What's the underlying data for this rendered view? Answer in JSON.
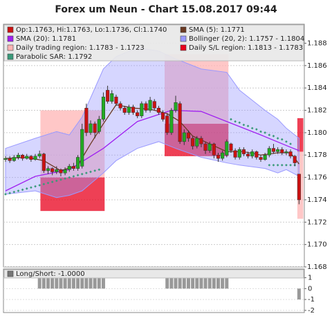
{
  "chart_data": {
    "type": "candlestick",
    "title": "Forex um Neun - Chart 15.08.2017 09:44",
    "ylim": [
      1.168,
      1.1897
    ],
    "yticks": [
      1.168,
      {
        "value": 1.17,
        "label": "1.170"
      },
      1.172,
      1.174,
      1.176,
      1.178,
      {
        "value": 1.18,
        "label": "1.180"
      },
      1.182,
      1.184,
      1.186,
      1.188
    ],
    "grid": true,
    "series": [
      {
        "type": "candlestick",
        "name": "Op:1.1763, Hi:1.1763, Lo:1.1736, Cl:1.1740",
        "color": "#cc1111",
        "up_color": "#22aa22",
        "open": [
          1.1776,
          1.1777,
          1.1775,
          1.1778,
          1.178,
          1.1777,
          1.1779,
          1.1776,
          1.1779,
          1.1781,
          1.1766,
          1.1768,
          1.1765,
          1.1767,
          1.1764,
          1.1767,
          1.177,
          1.1768,
          1.177,
          1.1822,
          1.18,
          1.1808,
          1.1801,
          1.1812,
          1.1838,
          1.1828,
          1.1832,
          1.1826,
          1.1822,
          1.1818,
          1.1823,
          1.1818,
          1.1815,
          1.1826,
          1.182,
          1.1828,
          1.1822,
          1.1818,
          1.1815,
          1.18,
          1.182,
          1.1826,
          1.1792,
          1.18,
          1.1795,
          1.1788,
          1.1795,
          1.179,
          1.1784,
          1.179,
          1.178,
          1.1777,
          1.178,
          1.179,
          1.1784,
          1.1778,
          1.1785,
          1.1781,
          1.1779,
          1.1783,
          1.1778,
          1.1776,
          1.178,
          1.1786,
          1.1783,
          1.1785,
          1.1782,
          1.1783,
          1.1779,
          1.1763
        ],
        "high": [
          1.1779,
          1.1779,
          1.178,
          1.1782,
          1.1781,
          1.1781,
          1.178,
          1.1781,
          1.1784,
          1.1782,
          1.177,
          1.1769,
          1.177,
          1.1768,
          1.1769,
          1.1772,
          1.1773,
          1.178,
          1.1808,
          1.1826,
          1.1811,
          1.181,
          1.1815,
          1.1836,
          1.1842,
          1.1838,
          1.1834,
          1.1828,
          1.1824,
          1.1825,
          1.1825,
          1.182,
          1.1828,
          1.1828,
          1.1832,
          1.183,
          1.1824,
          1.182,
          1.1817,
          1.1822,
          1.1833,
          1.1828,
          1.1803,
          1.1802,
          1.1797,
          1.1797,
          1.1797,
          1.1792,
          1.1792,
          1.1791,
          1.1782,
          1.1784,
          1.1794,
          1.1791,
          1.1786,
          1.1787,
          1.1787,
          1.1783,
          1.1785,
          1.1784,
          1.178,
          1.1782,
          1.1788,
          1.179,
          1.1787,
          1.1787,
          1.1785,
          1.1785,
          1.178,
          1.1763
        ],
        "low": [
          1.1774,
          1.1773,
          1.1774,
          1.1776,
          1.1775,
          1.1776,
          1.1774,
          1.1775,
          1.1777,
          1.1764,
          1.1763,
          1.1762,
          1.1763,
          1.1761,
          1.1762,
          1.1765,
          1.1766,
          1.1766,
          1.1768,
          1.1797,
          1.1798,
          1.1795,
          1.1799,
          1.181,
          1.1826,
          1.1826,
          1.1824,
          1.182,
          1.1816,
          1.1816,
          1.1816,
          1.1813,
          1.1813,
          1.1818,
          1.1818,
          1.182,
          1.1816,
          1.181,
          1.1798,
          1.1798,
          1.1818,
          1.179,
          1.1789,
          1.1792,
          1.1785,
          1.1786,
          1.1787,
          1.1781,
          1.1782,
          1.1777,
          1.1774,
          1.1775,
          1.1778,
          1.1782,
          1.1776,
          1.1776,
          1.1779,
          1.1777,
          1.1777,
          1.1776,
          1.1774,
          1.1775,
          1.1778,
          1.1781,
          1.1781,
          1.178,
          1.178,
          1.1777,
          1.177,
          1.1736
        ],
        "close": [
          1.1777,
          1.1775,
          1.1778,
          1.178,
          1.1777,
          1.1779,
          1.1776,
          1.1779,
          1.1781,
          1.1766,
          1.1768,
          1.1765,
          1.1767,
          1.1764,
          1.1767,
          1.177,
          1.1768,
          1.1778,
          1.1803,
          1.18,
          1.1808,
          1.18,
          1.1812,
          1.1832,
          1.1828,
          1.1835,
          1.1826,
          1.1822,
          1.1818,
          1.1823,
          1.1818,
          1.1815,
          1.1826,
          1.182,
          1.1829,
          1.1822,
          1.1818,
          1.1812,
          1.18,
          1.182,
          1.1827,
          1.1792,
          1.18,
          1.1795,
          1.1788,
          1.1795,
          1.179,
          1.1784,
          1.179,
          1.178,
          1.1777,
          1.1782,
          1.1792,
          1.1784,
          1.1778,
          1.1785,
          1.1781,
          1.1779,
          1.1783,
          1.1778,
          1.1776,
          1.178,
          1.1786,
          1.1783,
          1.1785,
          1.1782,
          1.1783,
          1.1779,
          1.1773,
          1.174
        ]
      },
      {
        "type": "line",
        "name": "SMA (5): 1.1771",
        "color": "#6b3a22",
        "x": [
          0,
          5,
          9,
          13,
          17,
          20,
          23,
          26,
          30,
          34,
          38,
          41,
          44,
          48,
          52,
          56,
          60,
          64,
          67,
          69
        ],
        "values": [
          1.1777,
          1.1778,
          1.1775,
          1.1766,
          1.1771,
          1.179,
          1.1808,
          1.1825,
          1.1822,
          1.1821,
          1.1817,
          1.181,
          1.1797,
          1.179,
          1.1783,
          1.1783,
          1.178,
          1.1782,
          1.1782,
          1.1772
        ]
      },
      {
        "type": "line",
        "name": "SMA (20): 1.1781",
        "color": "#a020f0",
        "x": [
          0,
          7,
          15,
          23,
          31,
          39,
          46,
          52,
          60,
          67,
          69
        ],
        "values": [
          1.1748,
          1.1761,
          1.1767,
          1.1786,
          1.181,
          1.182,
          1.1819,
          1.181,
          1.1798,
          1.1787,
          1.1784
        ]
      },
      {
        "type": "band",
        "name": "Bollinger (20, 2): 1.1757 - 1.1804",
        "color": "#9999ff",
        "x": [
          0,
          7,
          12,
          15,
          18,
          23,
          26,
          31,
          36,
          40,
          46,
          52,
          55,
          61,
          64,
          66,
          69
        ],
        "upper": [
          1.1786,
          1.1795,
          1.1801,
          1.1798,
          1.1814,
          1.1857,
          1.1868,
          1.1876,
          1.1873,
          1.1866,
          1.1857,
          1.1854,
          1.1838,
          1.182,
          1.1812,
          1.1804,
          1.1795
        ],
        "lower": [
          1.1745,
          1.1748,
          1.1742,
          1.1744,
          1.1748,
          1.1764,
          1.1775,
          1.1786,
          1.1792,
          1.1786,
          1.1778,
          1.1773,
          1.1771,
          1.1768,
          1.1764,
          1.1767,
          1.1761
        ]
      },
      {
        "type": "region",
        "name": "Daily trading region: 1.1783 - 1.1723",
        "color": "#ffb4b4",
        "x0": [
          8.2,
          37.4,
          68.6
        ],
        "x1": [
          23.3,
          52.4,
          70
        ],
        "lower": [
          1.176,
          1.1808,
          1.1723
        ],
        "upper": [
          1.182,
          1.187,
          1.1783
        ]
      },
      {
        "type": "region",
        "name": "Daily S/L region: 1.1813 - 1.1783",
        "color": "#e8001c",
        "x0": [
          8.2,
          37.4,
          68.6
        ],
        "x1": [
          23.3,
          52.4,
          70
        ],
        "lower": [
          1.173,
          1.1779,
          1.1783
        ],
        "upper": [
          1.176,
          1.1808,
          1.1813
        ]
      },
      {
        "type": "scatter",
        "name": "Parabolic SAR: 1.1792",
        "color": "#3a9a7a",
        "x": [
          0,
          1,
          2,
          3,
          4,
          5,
          6,
          7,
          8,
          9,
          10,
          11,
          12,
          13,
          14,
          15,
          16,
          17,
          18,
          19,
          20,
          21,
          22,
          53,
          54,
          55,
          56,
          57,
          58,
          59,
          60,
          61,
          62,
          63,
          64,
          65,
          66,
          67,
          62,
          63,
          64,
          65,
          66,
          67,
          68
        ],
        "values": [
          1.1745,
          1.1746,
          1.1747,
          1.1748,
          1.1749,
          1.175,
          1.1751,
          1.1752,
          1.1753,
          1.1754,
          1.1755,
          1.1756,
          1.1757,
          1.1758,
          1.1759,
          1.176,
          1.1761,
          1.1762,
          1.1763,
          1.1764,
          1.1765,
          1.1766,
          1.1767,
          1.1812,
          1.181,
          1.1809,
          1.1807,
          1.1806,
          1.1804,
          1.1803,
          1.1801,
          1.18,
          1.1798,
          1.1797,
          1.1795,
          1.1794,
          1.1792,
          1.179,
          1.1771,
          1.1771,
          1.1771,
          1.1771,
          1.1771,
          1.1771,
          1.1771
        ]
      }
    ],
    "indicator": {
      "type": "bar",
      "name": "Long/Short: -1.0000",
      "color": "#999999",
      "ylim": [
        -2.2,
        1.8
      ],
      "yticks": [
        1,
        0,
        -1,
        -2
      ],
      "values": [
        0,
        0,
        0,
        0,
        0,
        0,
        0,
        0,
        1,
        1,
        1,
        1,
        1,
        1,
        1,
        1,
        1,
        1,
        1,
        1,
        1,
        1,
        1,
        1,
        0,
        0,
        0,
        0,
        0,
        0,
        0,
        0,
        0,
        0,
        0,
        0,
        0,
        0,
        1,
        1,
        1,
        1,
        1,
        1,
        1,
        1,
        1,
        1,
        1,
        1,
        1,
        1,
        1,
        0,
        0,
        0,
        0,
        0,
        0,
        0,
        0,
        0,
        0,
        0,
        0,
        0,
        0,
        0,
        0,
        -1
      ]
    }
  }
}
